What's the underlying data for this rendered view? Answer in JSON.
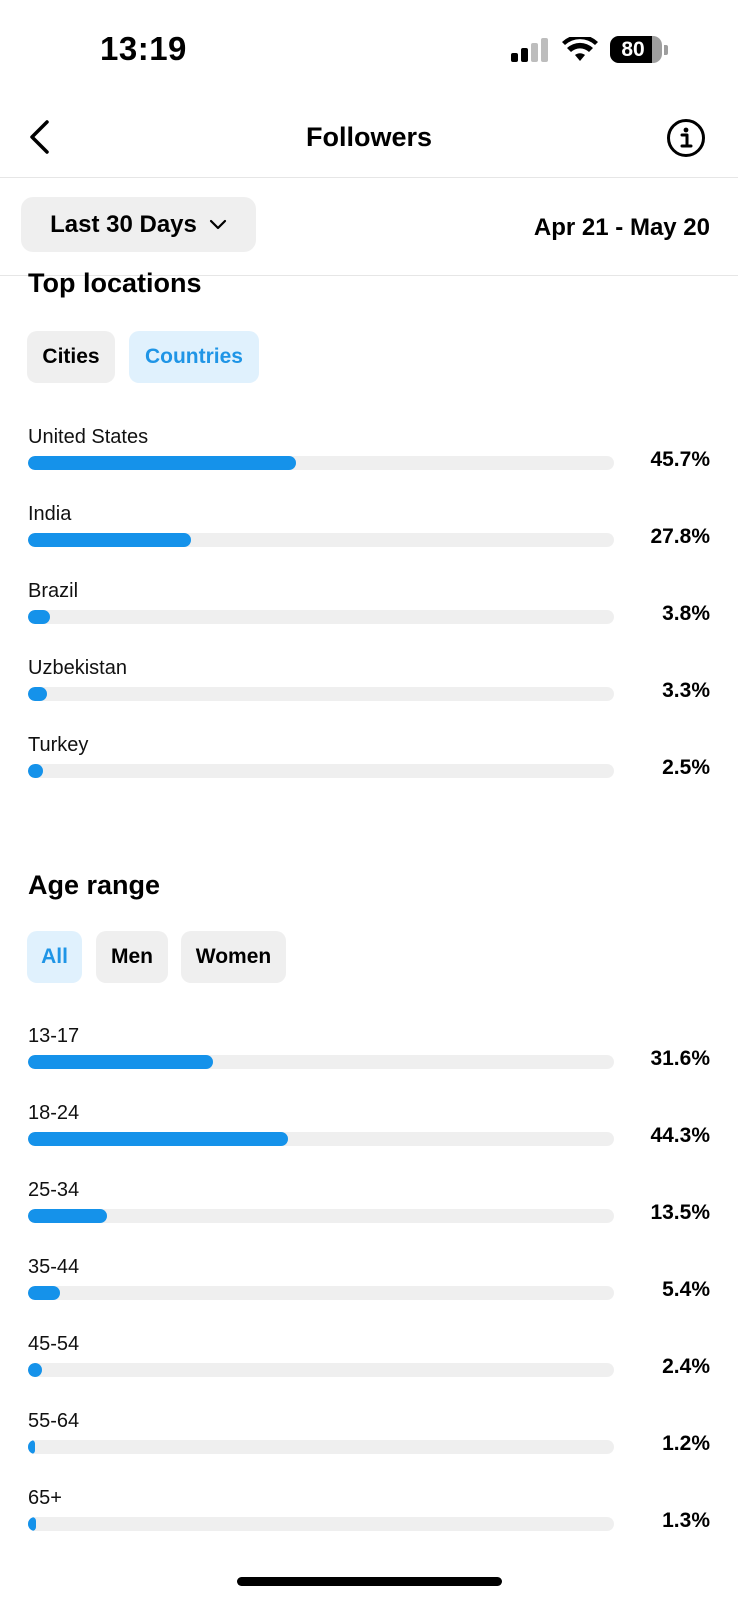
{
  "status_bar": {
    "time": "13:19",
    "battery": "80"
  },
  "header": {
    "title": "Followers"
  },
  "filter": {
    "range_label": "Last 30 Days",
    "date_range": "Apr 21 - May 20"
  },
  "top_locations": {
    "title": "Top locations",
    "tabs": [
      {
        "label": "Cities",
        "active": false
      },
      {
        "label": "Countries",
        "active": true
      }
    ],
    "items": [
      {
        "label": "United States",
        "value": "45.7%",
        "fraction": 0.457
      },
      {
        "label": "India",
        "value": "27.8%",
        "fraction": 0.278
      },
      {
        "label": "Brazil",
        "value": "3.8%",
        "fraction": 0.038
      },
      {
        "label": "Uzbekistan",
        "value": "3.3%",
        "fraction": 0.033
      },
      {
        "label": "Turkey",
        "value": "2.5%",
        "fraction": 0.025
      }
    ]
  },
  "age_range": {
    "title": "Age range",
    "tabs": [
      {
        "label": "All",
        "active": true
      },
      {
        "label": "Men",
        "active": false
      },
      {
        "label": "Women",
        "active": false
      }
    ],
    "items": [
      {
        "label": "13-17",
        "value": "31.6%",
        "fraction": 0.316
      },
      {
        "label": "18-24",
        "value": "44.3%",
        "fraction": 0.443
      },
      {
        "label": "25-34",
        "value": "13.5%",
        "fraction": 0.135
      },
      {
        "label": "35-44",
        "value": "5.4%",
        "fraction": 0.054
      },
      {
        "label": "45-54",
        "value": "2.4%",
        "fraction": 0.024
      },
      {
        "label": "55-64",
        "value": "1.2%",
        "fraction": 0.012
      },
      {
        "label": "65+",
        "value": "1.3%",
        "fraction": 0.013
      }
    ]
  },
  "colors": {
    "accent": "#1592ea",
    "track": "#efefef",
    "chip_bg": "#efefef",
    "chip_active_bg": "#e0f1fd",
    "chip_active_text": "#1f95e6"
  }
}
